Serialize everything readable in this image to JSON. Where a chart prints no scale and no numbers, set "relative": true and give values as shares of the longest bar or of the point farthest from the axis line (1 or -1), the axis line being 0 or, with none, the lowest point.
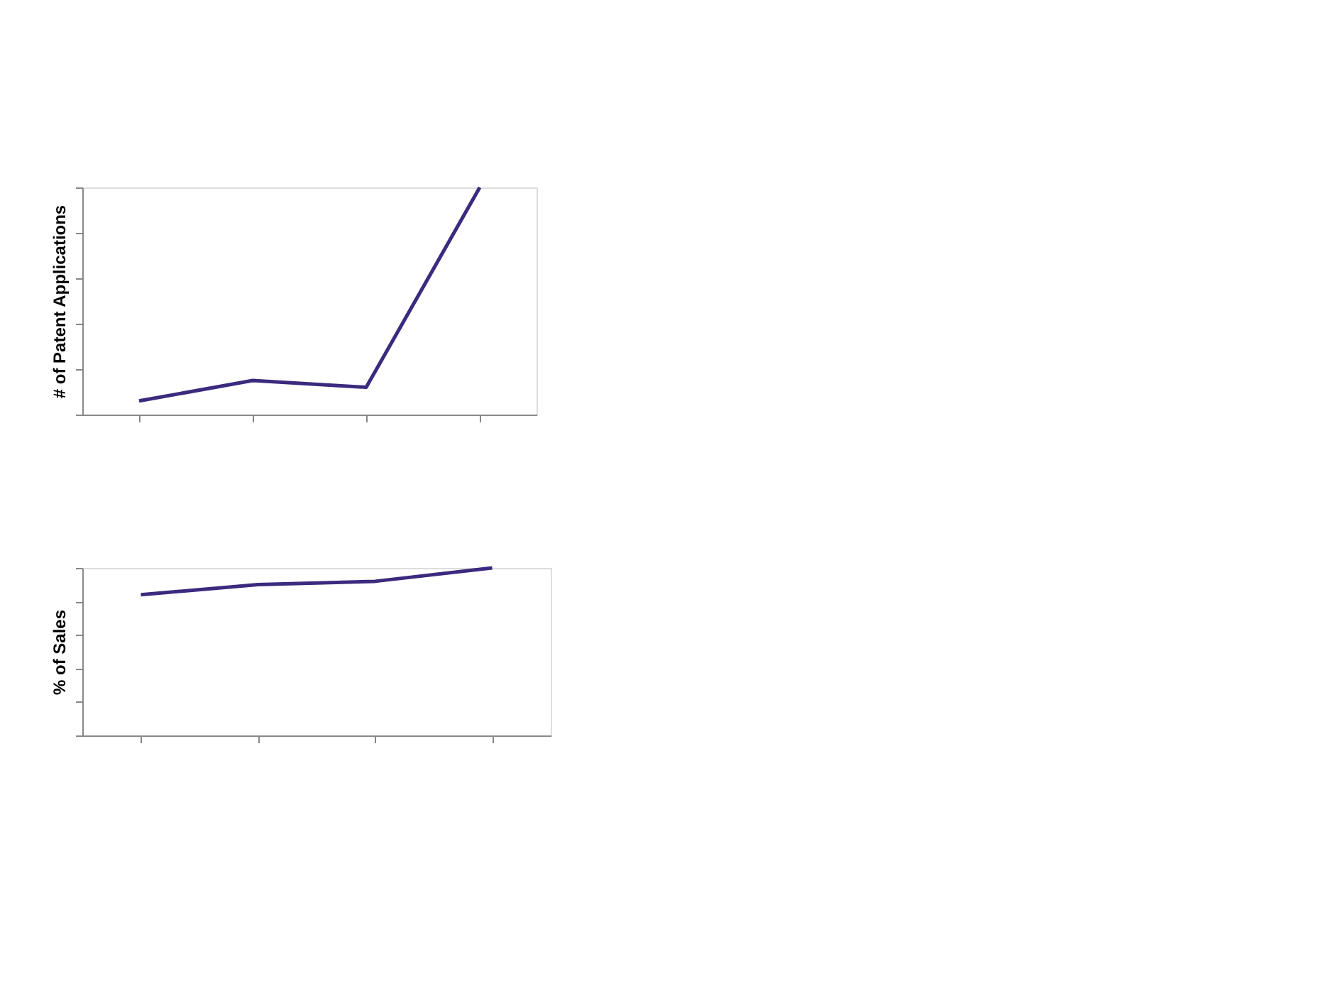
{
  "chart_data": [
    {
      "type": "line",
      "ylabel": "# of Patent Applications",
      "categories": [
        null,
        null,
        null,
        null
      ],
      "relative": true,
      "tick_labels": false,
      "grid": false,
      "marker": "none",
      "line_style": "solid",
      "series": [
        {
          "color": "#3b2a7e",
          "values": [
            0.06,
            0.15,
            0.12,
            1
          ]
        }
      ]
    },
    {
      "type": "line",
      "ylabel": "% of Sales",
      "categories": [
        null,
        null,
        null,
        null
      ],
      "relative": true,
      "tick_labels": false,
      "grid": false,
      "marker": "none",
      "line_style": "solid",
      "series": [
        {
          "color": "#3b2a7e",
          "values": [
            0.84,
            0.9,
            0.92,
            1
          ]
        }
      ]
    }
  ]
}
